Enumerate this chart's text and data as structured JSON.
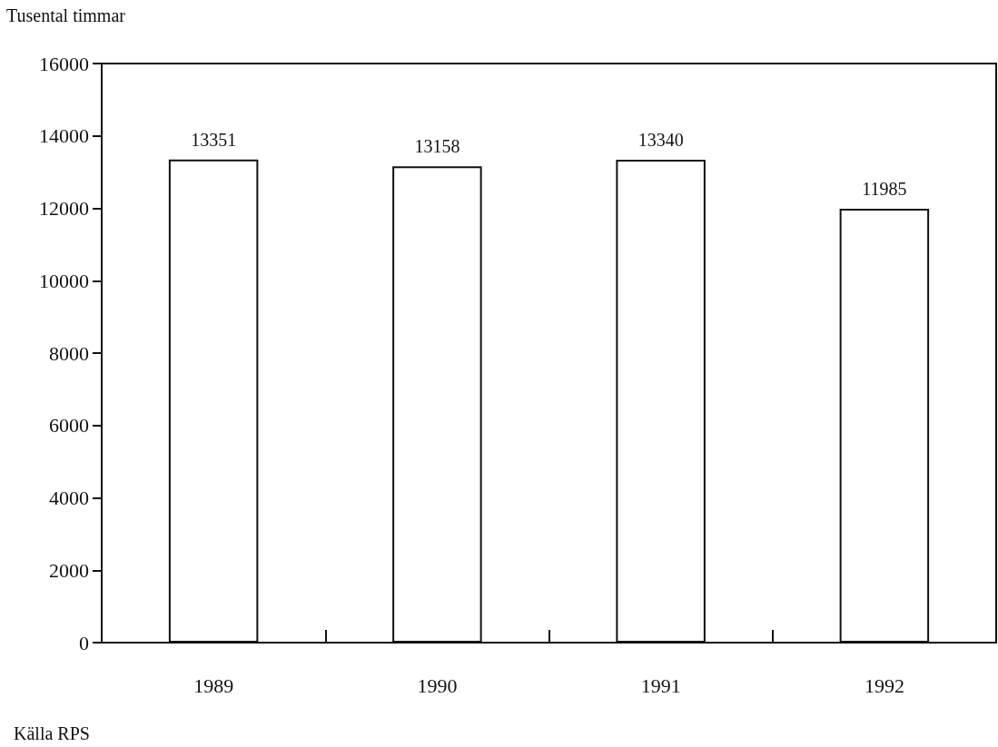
{
  "chart_data": {
    "type": "bar",
    "ylabel": "Tusental timmar",
    "categories": [
      "1989",
      "1990",
      "1991",
      "1992"
    ],
    "values": [
      13351,
      13158,
      13340,
      11985
    ],
    "color": "#ffffff",
    "ylim": [
      0,
      16000
    ],
    "yticks": [
      0,
      2000,
      4000,
      6000,
      8000,
      10000,
      12000,
      14000,
      16000
    ],
    "data_labels": true,
    "annotations": [
      "Källa RPS"
    ]
  }
}
